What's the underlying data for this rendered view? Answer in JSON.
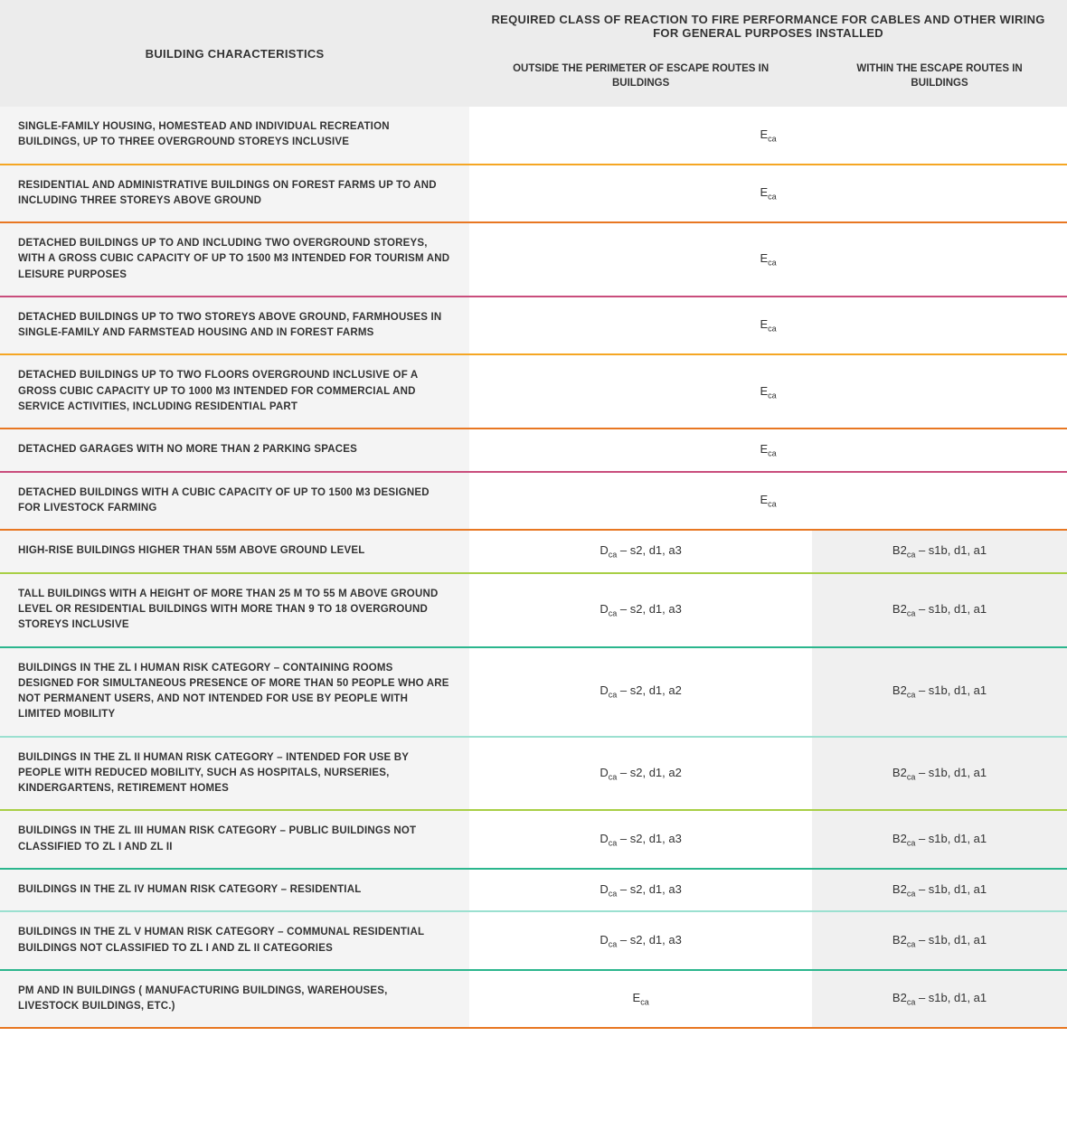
{
  "header": {
    "main": "BUILDING CHARACTERISTICS",
    "wide": "REQUIRED CLASS OF REACTION TO FIRE PERFORMANCE FOR CABLES AND OTHER WIRING FOR GENERAL PURPOSES INSTALLED",
    "sub_left": "OUTSIDE THE PERIMETER OF ESCAPE ROUTES IN BUILDINGS",
    "sub_right": "WITHIN THE ESCAPE ROUTES IN BUILDINGS"
  },
  "rows": [
    {
      "desc": "SINGLE-FAMILY HOUSING, HOMESTEAD AND INDIVIDUAL RECREATION BUILDINGS, UP TO THREE OVERGROUND STOREYS INCLUSIVE",
      "merged": true,
      "val": {
        "main": "E",
        "sub": "ca",
        "suffix": ""
      },
      "border": "#f5a623"
    },
    {
      "desc": "RESIDENTIAL AND ADMINISTRATIVE BUILDINGS ON FOREST FARMS UP TO AND INCLUDING THREE STOREYS ABOVE GROUND",
      "merged": true,
      "val": {
        "main": "E",
        "sub": "ca",
        "suffix": ""
      },
      "border": "#e87722"
    },
    {
      "desc": "DETACHED BUILDINGS UP TO AND INCLUDING TWO OVERGROUND STOREYS, WITH A GROSS CUBIC CAPACITY OF UP TO 1500 M3 INTENDED FOR TOURISM AND LEISURE PURPOSES",
      "merged": true,
      "val": {
        "main": "E",
        "sub": "ca",
        "suffix": ""
      },
      "border": "#c94d7c"
    },
    {
      "desc": "DETACHED BUILDINGS UP TO TWO STOREYS ABOVE GROUND, FARMHOUSES IN SINGLE-FAMILY AND FARMSTEAD HOUSING AND IN FOREST FARMS",
      "merged": true,
      "val": {
        "main": "E",
        "sub": "ca",
        "suffix": ""
      },
      "border": "#f5a623"
    },
    {
      "desc": "DETACHED BUILDINGS UP TO TWO FLOORS OVERGROUND INCLUSIVE OF A GROSS CUBIC CAPACITY UP TO 1000 M3 INTENDED FOR COMMERCIAL AND SERVICE ACTIVITIES, INCLUDING RESIDENTIAL PART",
      "merged": true,
      "val": {
        "main": "E",
        "sub": "ca",
        "suffix": ""
      },
      "border": "#e87722"
    },
    {
      "desc": "DETACHED GARAGES WITH NO MORE THAN 2 PARKING SPACES",
      "merged": true,
      "val": {
        "main": "E",
        "sub": "ca",
        "suffix": ""
      },
      "border": "#c94d7c"
    },
    {
      "desc": "DETACHED BUILDINGS WITH A CUBIC CAPACITY OF UP TO 1500 M3 DESIGNED FOR LIVESTOCK FARMING",
      "merged": true,
      "val": {
        "main": "E",
        "sub": "ca",
        "suffix": ""
      },
      "border": "#e87722"
    },
    {
      "desc": "HIGH-RISE BUILDINGS HIGHER THAN 55M ABOVE GROUND LEVEL",
      "merged": false,
      "left": {
        "main": "D",
        "sub": "ca",
        "suffix": " – s2, d1, a3"
      },
      "right": {
        "main": "B2",
        "sub": "ca",
        "suffix": " – s1b, d1, a1"
      },
      "border": "#a8cf45"
    },
    {
      "desc": "TALL BUILDINGS WITH A HEIGHT OF MORE THAN 25 M TO 55 M ABOVE GROUND LEVEL OR RESIDENTIAL BUILDINGS WITH MORE THAN 9 TO 18 OVERGROUND STOREYS INCLUSIVE",
      "merged": false,
      "left": {
        "main": "D",
        "sub": "ca",
        "suffix": " – s2, d1, a3"
      },
      "right": {
        "main": "B2",
        "sub": "ca",
        "suffix": " – s1b, d1, a1"
      },
      "border": "#2bb68d"
    },
    {
      "desc": "BUILDINGS IN THE ZL I HUMAN RISK CATEGORY – CONTAINING ROOMS DESIGNED FOR SIMULTANEOUS PRESENCE OF MORE THAN 50 PEOPLE WHO ARE NOT PERMANENT USERS, AND NOT INTENDED FOR USE BY PEOPLE WITH LIMITED MOBILITY",
      "merged": false,
      "left": {
        "main": "D",
        "sub": "ca",
        "suffix": " – s2, d1, a2"
      },
      "right": {
        "main": "B2",
        "sub": "ca",
        "suffix": " – s1b, d1, a1"
      },
      "border": "#9be0d0"
    },
    {
      "desc": "BUILDINGS IN THE ZL II HUMAN RISK CATEGORY – INTENDED FOR USE BY PEOPLE WITH REDUCED MOBILITY, SUCH AS HOSPITALS, NURSERIES, KINDERGARTENS, RETIREMENT HOMES",
      "merged": false,
      "left": {
        "main": "D",
        "sub": "ca",
        "suffix": " – s2, d1, a2"
      },
      "right": {
        "main": "B2",
        "sub": "ca",
        "suffix": " – s1b, d1, a1"
      },
      "border": "#a8cf45"
    },
    {
      "desc": "BUILDINGS IN THE ZL III HUMAN RISK CATEGORY – PUBLIC BUILDINGS NOT CLASSIFIED TO ZL I AND ZL II",
      "merged": false,
      "left": {
        "main": "D",
        "sub": "ca",
        "suffix": " – s2, d1, a3"
      },
      "right": {
        "main": "B2",
        "sub": "ca",
        "suffix": " – s1b, d1, a1"
      },
      "border": "#2bb68d"
    },
    {
      "desc": "BUILDINGS IN THE ZL IV HUMAN RISK CATEGORY – RESIDENTIAL",
      "merged": false,
      "left": {
        "main": "D",
        "sub": "ca",
        "suffix": " – s2, d1, a3"
      },
      "right": {
        "main": "B2",
        "sub": "ca",
        "suffix": " – s1b, d1, a1"
      },
      "border": "#9be0d0"
    },
    {
      "desc": "BUILDINGS IN THE ZL V HUMAN RISK CATEGORY – COMMUNAL RESIDENTIAL BUILDINGS NOT CLASSIFIED TO ZL I AND ZL II CATEGORIES",
      "merged": false,
      "left": {
        "main": "D",
        "sub": "ca",
        "suffix": " – s2, d1, a3"
      },
      "right": {
        "main": "B2",
        "sub": "ca",
        "suffix": " – s1b, d1, a1"
      },
      "border": "#2bb68d"
    },
    {
      "desc": "PM AND IN BUILDINGS ( MANUFACTURING BUILDINGS, WAREHOUSES, LIVESTOCK BUILDINGS, ETC.)",
      "merged": false,
      "left": {
        "main": "E",
        "sub": "ca",
        "suffix": ""
      },
      "right": {
        "main": "B2",
        "sub": "ca",
        "suffix": " – s1b, d1, a1"
      },
      "border": "#e87722"
    }
  ]
}
